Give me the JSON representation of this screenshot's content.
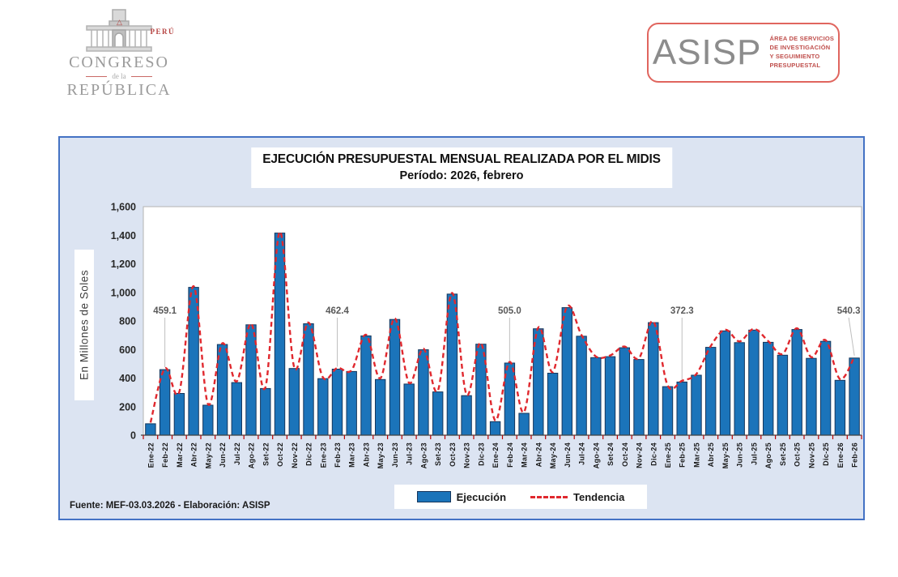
{
  "header": {
    "congress_logo": {
      "country": "PERÚ",
      "line1": "CONGRESO",
      "line2": "de la",
      "line3": "REPÚBLICA"
    },
    "asisp_logo": {
      "acronym": "ASISP",
      "lines": [
        "ÁREA DE SERVICIOS",
        "DE INVESTIGACIÓN",
        "Y SEGUIMIENTO",
        "PRESUPUESTAL"
      ]
    }
  },
  "chart": {
    "title_line1": "EJECUCIÓN PRESUPUESTAL MENSUAL REALIZADA POR EL MIDIS",
    "title_line2": "Período: 2026, febrero",
    "y_axis_label": "En Millones de Soles",
    "legend": {
      "execution": "Ejecución",
      "trend": "Tendencia"
    },
    "footnote": "Fuente:  MEF-03.03.2026 - Elaboración: ASISP"
  },
  "chart_data": {
    "type": "bar",
    "title": "EJECUCIÓN PRESUPUESTAL MENSUAL REALIZADA POR EL MIDIS",
    "subtitle": "Período: 2026, febrero",
    "ylabel": "En Millones de Soles",
    "ylim": [
      0,
      1600
    ],
    "y_ticks": [
      "0",
      "200",
      "400",
      "600",
      "800",
      "1,000",
      "1,200",
      "1,400",
      "1,600"
    ],
    "grid": false,
    "legend_position": "bottom",
    "categories": [
      "Ene-22",
      "Feb-22",
      "Mar-22",
      "Abr-22",
      "May-22",
      "Jun-22",
      "Jul-22",
      "Ago-22",
      "Set-22",
      "Oct-22",
      "Nov-22",
      "Dic-22",
      "Ene-23",
      "Feb-23",
      "Mar-23",
      "Abr-23",
      "May-23",
      "Jun-23",
      "Jul-23",
      "Ago-23",
      "Set-23",
      "Oct-23",
      "Nov-23",
      "Dic-23",
      "Ene-24",
      "Feb-24",
      "Mar-24",
      "Abr-24",
      "May-24",
      "Jun-24",
      "Jul-24",
      "Ago-24",
      "Set-24",
      "Oct-24",
      "Nov-24",
      "Dic-24",
      "Ene-25",
      "Feb-25",
      "Mar-25",
      "Abr-25",
      "May-25",
      "Jun-25",
      "Jul-25",
      "Ago-25",
      "Set-25",
      "Oct-25",
      "Nov-25",
      "Dic-25",
      "Ene-26",
      "Feb-26"
    ],
    "series": [
      {
        "name": "Ejecución",
        "type": "bar",
        "values": [
          80,
          459.1,
          292,
          1035,
          210,
          635,
          368,
          773,
          327,
          1415,
          467,
          780,
          396,
          462.4,
          446,
          695,
          390,
          810,
          358,
          598,
          303,
          988,
          277,
          637,
          95,
          505.0,
          153,
          745,
          434,
          893,
          693,
          543,
          550,
          612,
          530,
          788,
          340,
          372.3,
          420,
          615,
          730,
          648,
          736,
          650,
          560,
          740,
          538,
          657,
          384,
          540.3
        ]
      },
      {
        "name": "Tendencia",
        "type": "line",
        "style": "dashed",
        "note": "smoothed red dashed trend tracking the same monthly values"
      }
    ],
    "annotations": [
      {
        "category": "Feb-22",
        "index": 1,
        "label": "459.1"
      },
      {
        "category": "Feb-23",
        "index": 13,
        "label": "462.4"
      },
      {
        "category": "Feb-24",
        "index": 25,
        "label": "505.0"
      },
      {
        "category": "Feb-25",
        "index": 37,
        "label": "372.3"
      },
      {
        "category": "Feb-26",
        "index": 49,
        "label": "540.3",
        "dx": -7
      }
    ],
    "colors": {
      "bar_fill": "#1b74ba",
      "bar_stroke": "#16365c",
      "trend": "#e0282e",
      "container_bg": "#dce4f2",
      "container_border": "#4472c4",
      "tick_marks": "#c00000",
      "annotation_text": "#595959"
    }
  }
}
